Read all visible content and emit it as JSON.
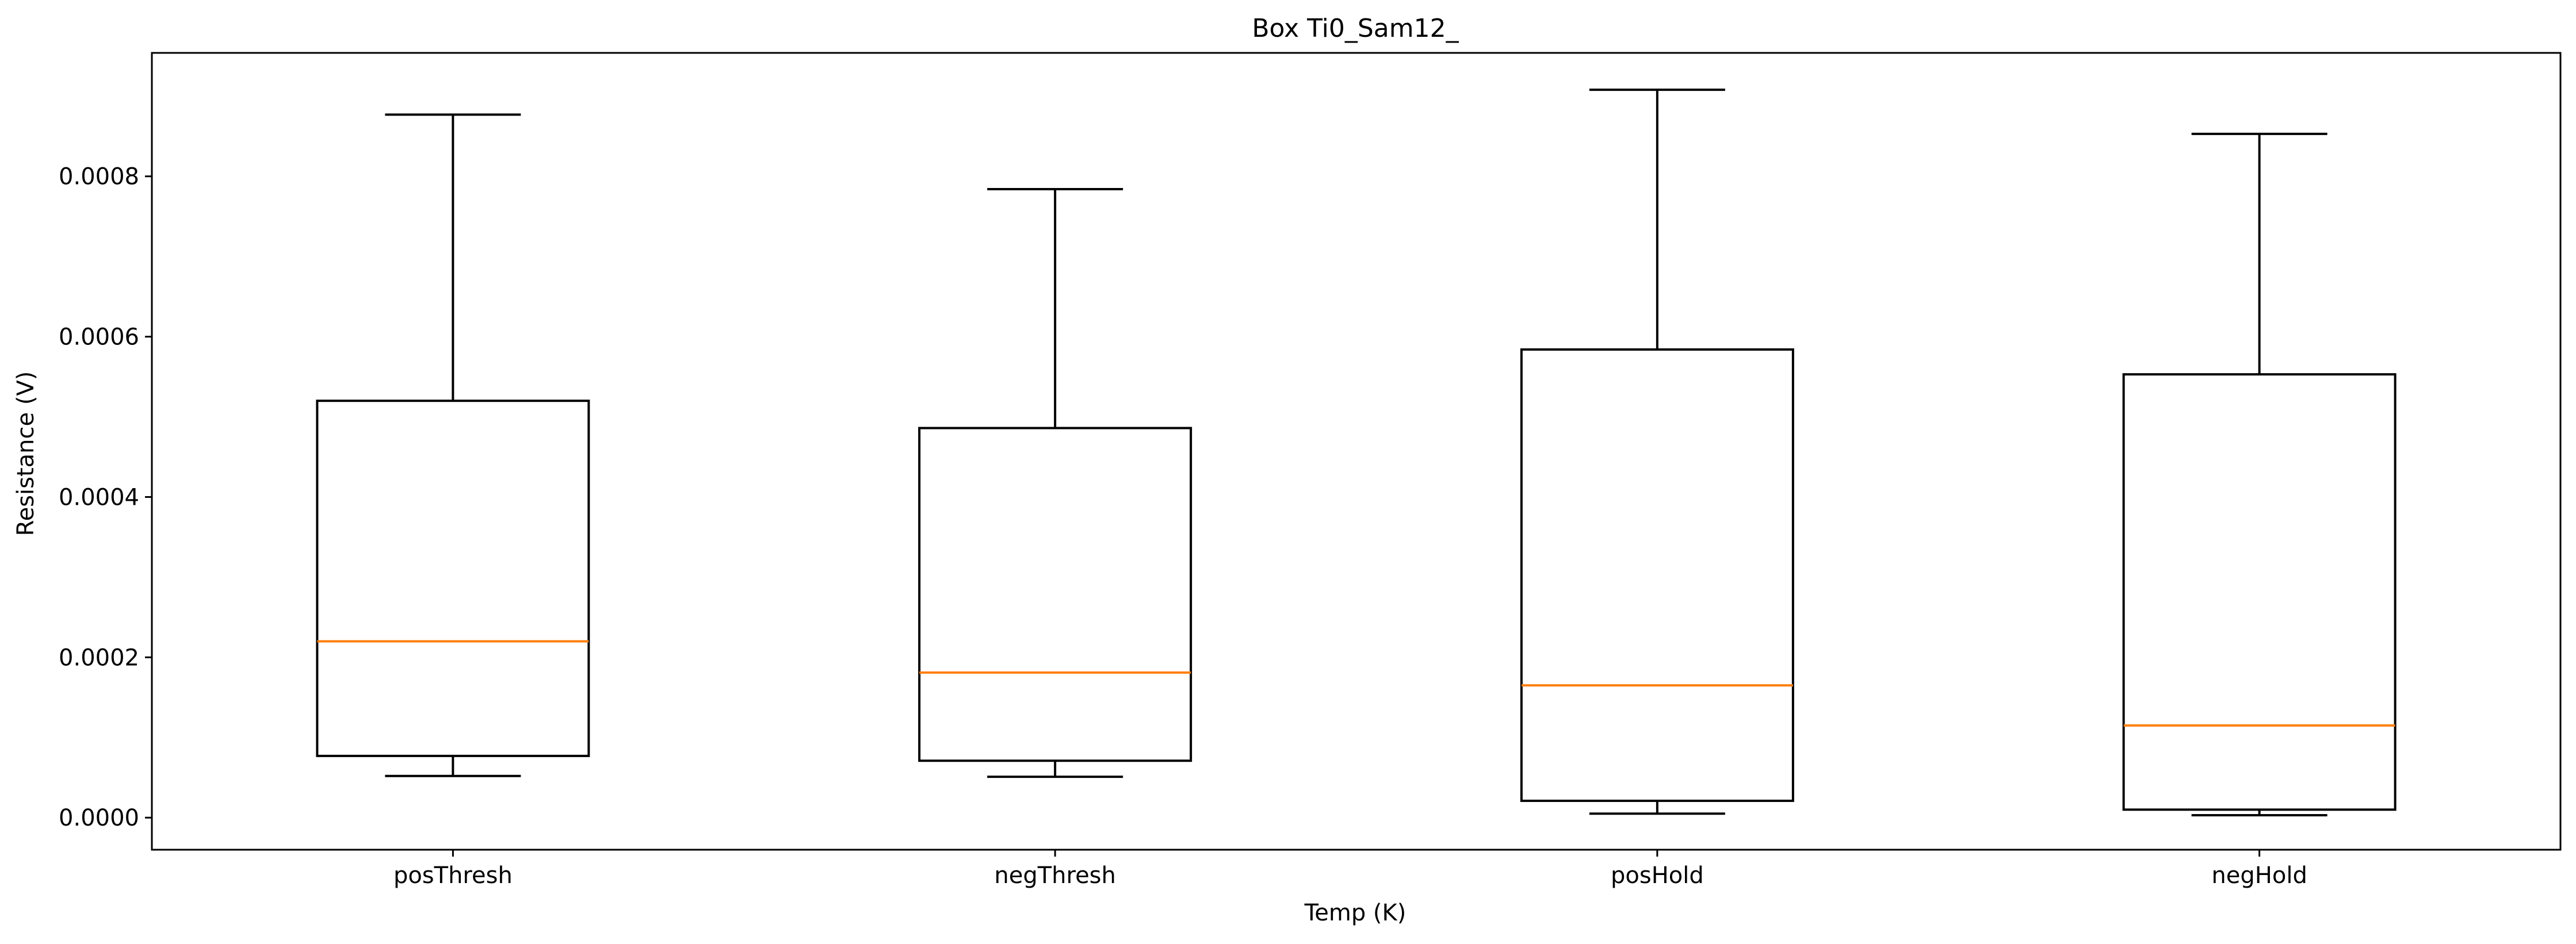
{
  "chart_data": {
    "type": "box",
    "title": "Box Ti0_Sam12_",
    "xlabel": "Temp (K)",
    "ylabel": "Resistance (V)",
    "categories": [
      "posThresh",
      "negThresh",
      "posHold",
      "negHold"
    ],
    "boxes": [
      {
        "category": "posThresh",
        "whisker_low": 5.2e-05,
        "q1": 7.7e-05,
        "median": 0.00022,
        "q3": 0.00052,
        "whisker_high": 0.000877
      },
      {
        "category": "negThresh",
        "whisker_low": 5.1e-05,
        "q1": 7.1e-05,
        "median": 0.000181,
        "q3": 0.000486,
        "whisker_high": 0.000784
      },
      {
        "category": "posHold",
        "whisker_low": 5e-06,
        "q1": 2.1e-05,
        "median": 0.000165,
        "q3": 0.000584,
        "whisker_high": 0.000908
      },
      {
        "category": "negHold",
        "whisker_low": 3e-06,
        "q1": 1e-05,
        "median": 0.000115,
        "q3": 0.000553,
        "whisker_high": 0.000853
      }
    ],
    "y_ticks": [
      0,
      0.0002,
      0.0004,
      0.0006,
      0.0008
    ],
    "y_tick_labels": [
      "0.0000",
      "0.0002",
      "0.0004",
      "0.0006",
      "0.0008"
    ],
    "ylim": [
      -4e-05,
      0.000954
    ],
    "grid": false,
    "colors": {
      "box": "#000000",
      "median": "#ff7f0e"
    }
  }
}
